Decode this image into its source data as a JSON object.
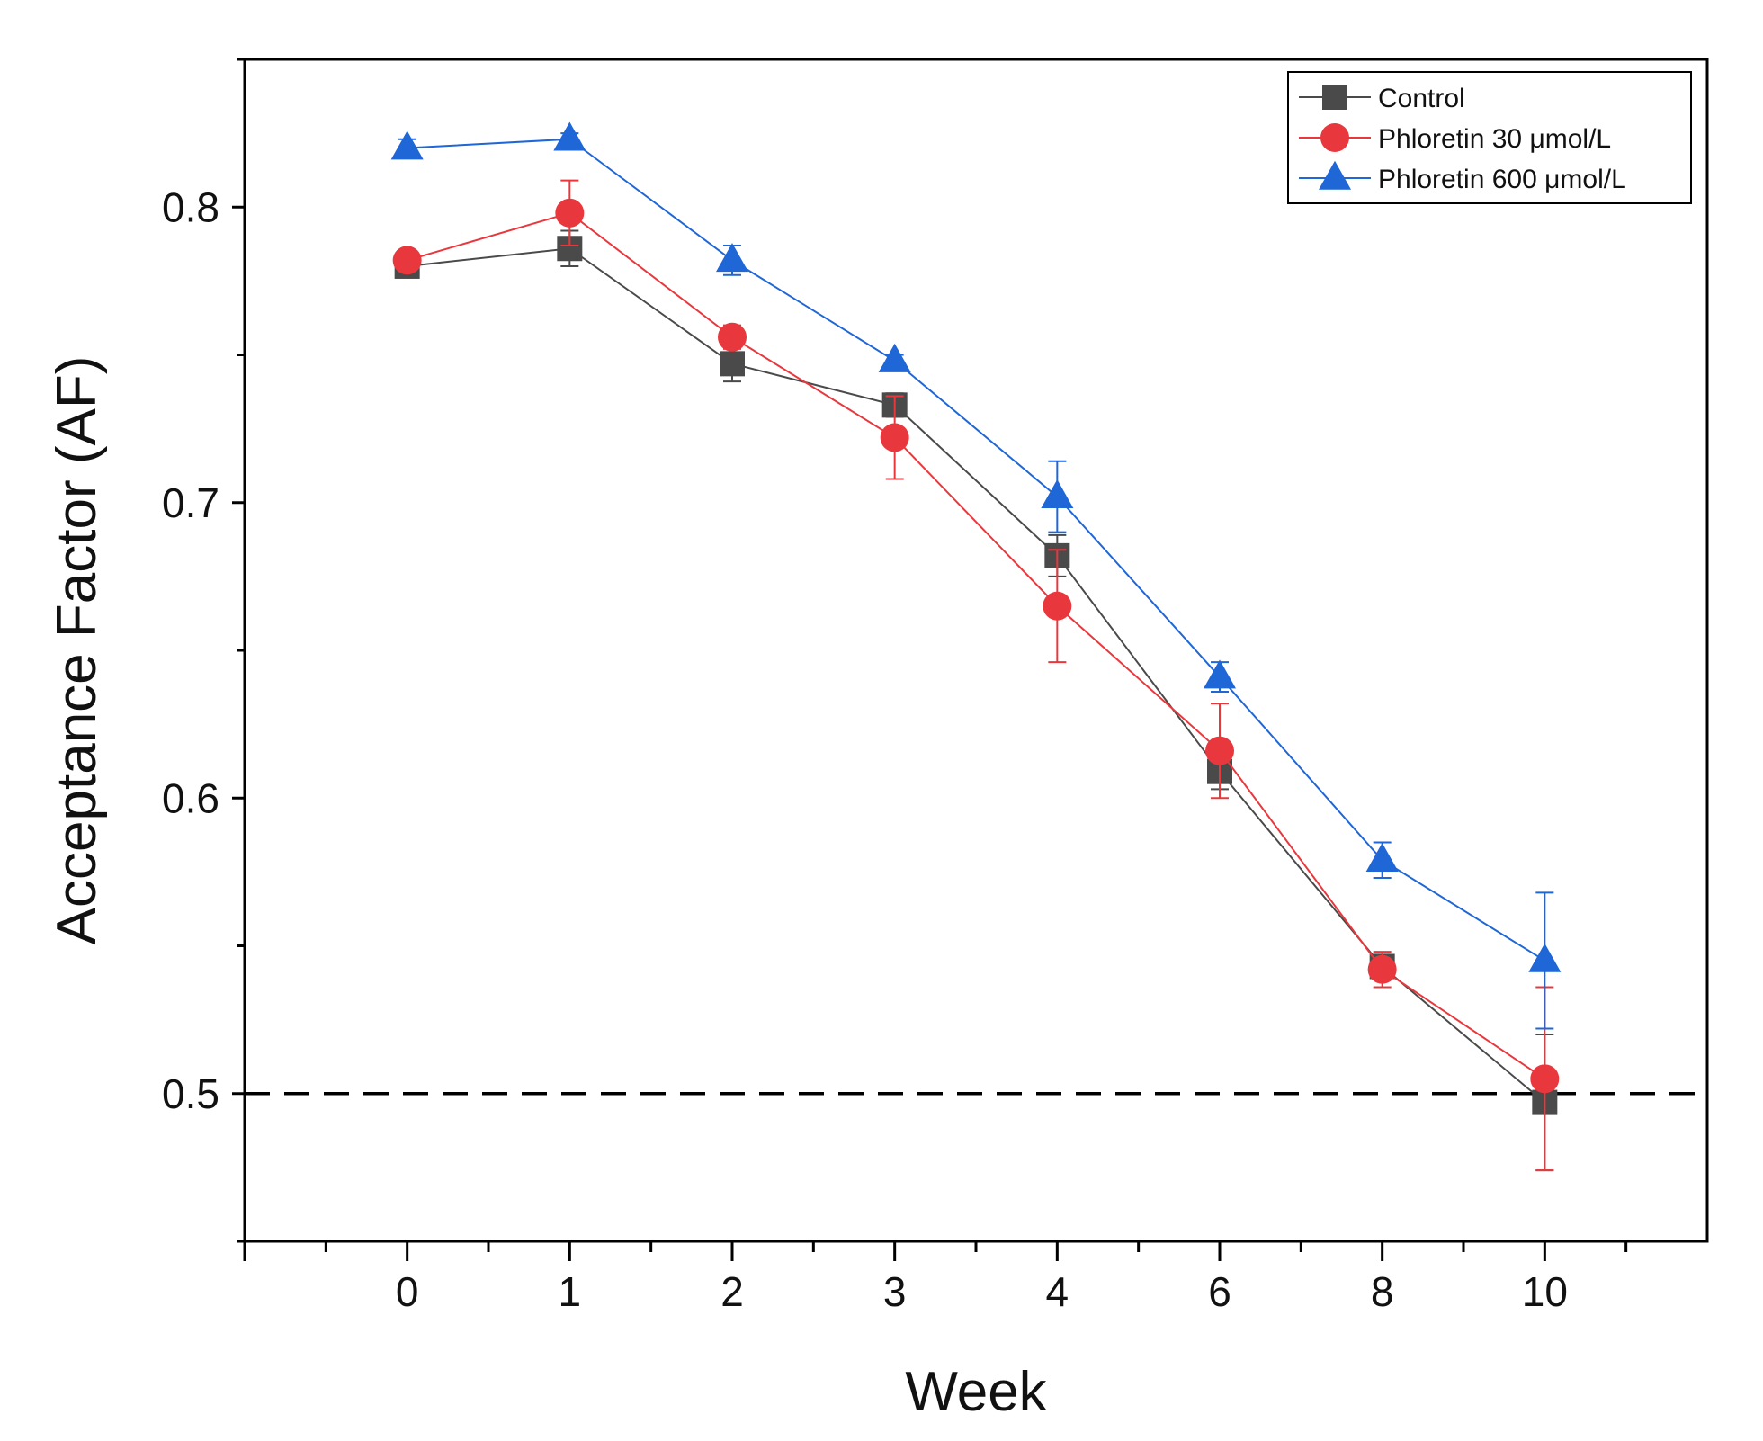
{
  "chart_data": {
    "type": "line",
    "title": "",
    "xlabel": "Week",
    "ylabel": "Acceptance Factor (AF)",
    "categories": [
      "0",
      "1",
      "2",
      "3",
      "4",
      "6",
      "8",
      "10"
    ],
    "x_range": [
      -1,
      8
    ],
    "ylim": [
      0.45,
      0.85
    ],
    "y_ticks": [
      0.5,
      0.6,
      0.7,
      0.8
    ],
    "y_tick_labels": [
      "0.5",
      "0.6",
      "0.7",
      "0.8"
    ],
    "grid": false,
    "legend_position": "top-right",
    "reference_line": {
      "y": 0.5,
      "style": "dashed",
      "color": "#000000"
    },
    "series": [
      {
        "name": "Control",
        "marker": "square",
        "color": "#4a4a4a",
        "values": [
          0.78,
          0.786,
          0.747,
          0.733,
          0.682,
          0.609,
          0.543,
          0.497
        ],
        "errors": [
          0.002,
          0.006,
          0.006,
          0.004,
          0.007,
          0.006,
          0.004,
          0.023
        ]
      },
      {
        "name": "Phloretin 30 μmol/L",
        "marker": "circle",
        "color": "#e8383d",
        "values": [
          0.782,
          0.798,
          0.756,
          0.722,
          0.665,
          0.616,
          0.542,
          0.505
        ],
        "errors": [
          0.002,
          0.011,
          0.004,
          0.014,
          0.019,
          0.016,
          0.006,
          0.031
        ]
      },
      {
        "name": "Phloretin 600 μmol/L",
        "marker": "triangle",
        "color": "#1f66d6",
        "values": [
          0.82,
          0.823,
          0.782,
          0.748,
          0.702,
          0.641,
          0.579,
          0.545
        ],
        "errors": [
          0.003,
          0.002,
          0.005,
          0.002,
          0.012,
          0.005,
          0.006,
          0.023
        ]
      }
    ]
  }
}
